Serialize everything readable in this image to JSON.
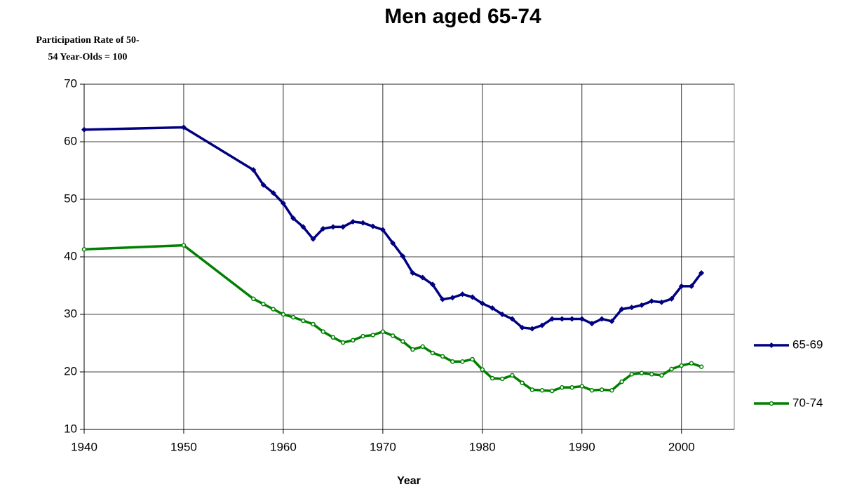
{
  "chart_data": {
    "type": "line",
    "title": "Men aged 65-74",
    "ylabel": [
      "Participation Rate of 50-",
      "54 Year-Olds = 100"
    ],
    "xlabel": "Year",
    "x": [
      1940,
      1950,
      1957,
      1958,
      1959,
      1960,
      1961,
      1962,
      1963,
      1964,
      1965,
      1966,
      1967,
      1968,
      1969,
      1970,
      1971,
      1972,
      1973,
      1974,
      1975,
      1976,
      1977,
      1978,
      1979,
      1980,
      1981,
      1982,
      1983,
      1984,
      1985,
      1986,
      1987,
      1988,
      1989,
      1990,
      1991,
      1992,
      1993,
      1994,
      1995,
      1996,
      1997,
      1998,
      1999,
      2000,
      2001,
      2002
    ],
    "series": [
      {
        "name": "65-69",
        "color": "#000080",
        "values": [
          62.1,
          62.5,
          55.1,
          52.5,
          51.1,
          49.3,
          46.7,
          45.2,
          43.1,
          44.9,
          45.2,
          45.2,
          46.1,
          45.9,
          45.3,
          44.7,
          42.4,
          40.1,
          37.2,
          36.4,
          35.2,
          32.6,
          32.9,
          33.5,
          33.0,
          31.9,
          31.1,
          30.0,
          29.2,
          27.7,
          27.5,
          28.1,
          29.2,
          29.2,
          29.2,
          29.2,
          28.4,
          29.2,
          28.8,
          30.9,
          31.2,
          31.6,
          32.3,
          32.1,
          32.7,
          34.9,
          34.9,
          37.2
        ]
      },
      {
        "name": "70-74",
        "color": "#008000",
        "values": [
          41.3,
          42.0,
          32.7,
          31.8,
          30.9,
          30.0,
          29.5,
          28.9,
          28.3,
          27.0,
          26.0,
          25.1,
          25.5,
          26.2,
          26.4,
          27.0,
          26.3,
          25.3,
          23.9,
          24.4,
          23.3,
          22.7,
          21.8,
          21.8,
          22.2,
          20.4,
          18.9,
          18.8,
          19.4,
          18.1,
          16.9,
          16.8,
          16.7,
          17.3,
          17.3,
          17.5,
          16.8,
          16.9,
          16.8,
          18.3,
          19.6,
          19.8,
          19.6,
          19.4,
          20.5,
          21.1,
          21.5,
          20.9
        ]
      }
    ],
    "xlim": [
      1940,
      2005.3
    ],
    "xticks": [
      1940,
      1950,
      1960,
      1970,
      1980,
      1990,
      2000
    ],
    "ylim": [
      10,
      70
    ],
    "yticks": [
      10,
      20,
      30,
      40,
      50,
      60,
      70
    ],
    "grid": true,
    "legend": "right"
  }
}
